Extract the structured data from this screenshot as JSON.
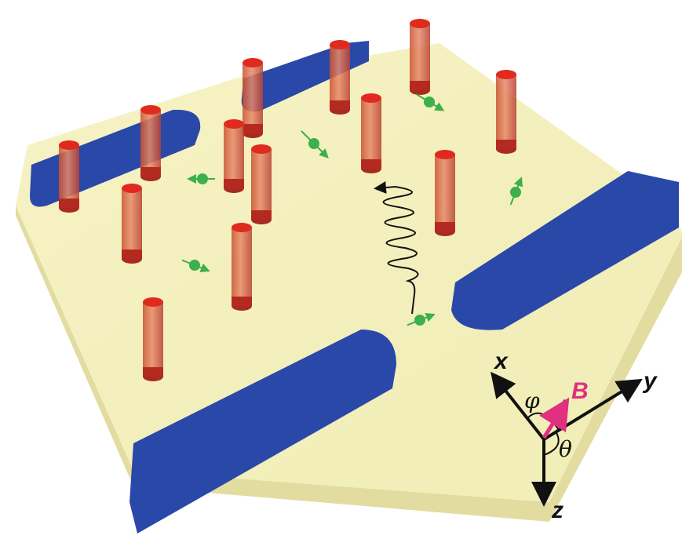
{
  "axes": {
    "x": "x",
    "y": "y",
    "z": "z",
    "phi": "φ",
    "theta": "θ",
    "field": "B"
  }
}
